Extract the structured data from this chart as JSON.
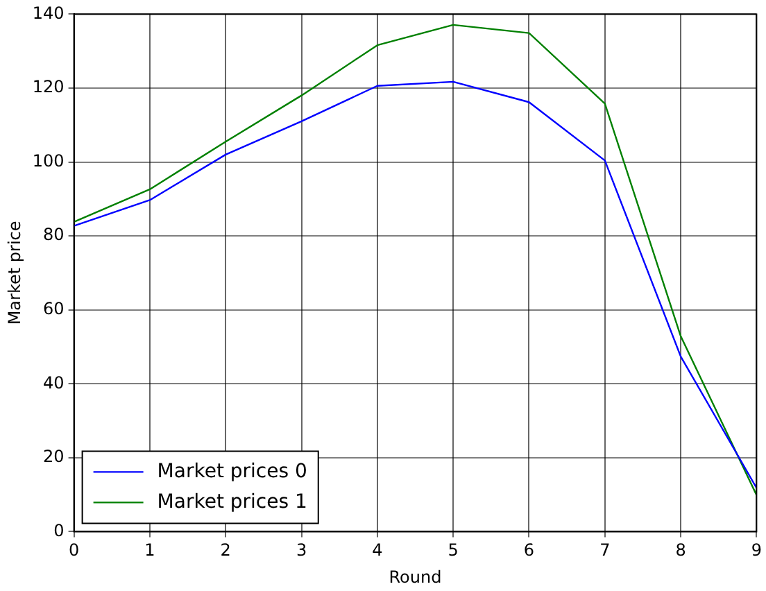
{
  "chart_data": {
    "type": "line",
    "xlabel": "Round",
    "ylabel": "Market price",
    "x": [
      0,
      1,
      2,
      3,
      4,
      5,
      6,
      7,
      8,
      9
    ],
    "series": [
      {
        "name": "Market prices 0",
        "color": "#0000ff",
        "values": [
          82.7,
          89.7,
          102,
          111,
          120.6,
          121.7,
          116.2,
          100.4,
          47.4,
          11.8
        ]
      },
      {
        "name": "Market prices 1",
        "color": "#008000",
        "values": [
          83.8,
          92.6,
          105.5,
          118,
          131.6,
          137.1,
          134.9,
          115.8,
          52.9,
          9.9
        ]
      }
    ],
    "xlim": [
      0,
      9
    ],
    "xticks": [
      0,
      1,
      2,
      3,
      4,
      5,
      6,
      7,
      8,
      9
    ],
    "ylim": [
      0,
      140
    ],
    "yticks": [
      0,
      20,
      40,
      60,
      80,
      100,
      120,
      140
    ],
    "grid": true,
    "legend": "bottom left",
    "marker": "none",
    "line_style": "solid"
  }
}
